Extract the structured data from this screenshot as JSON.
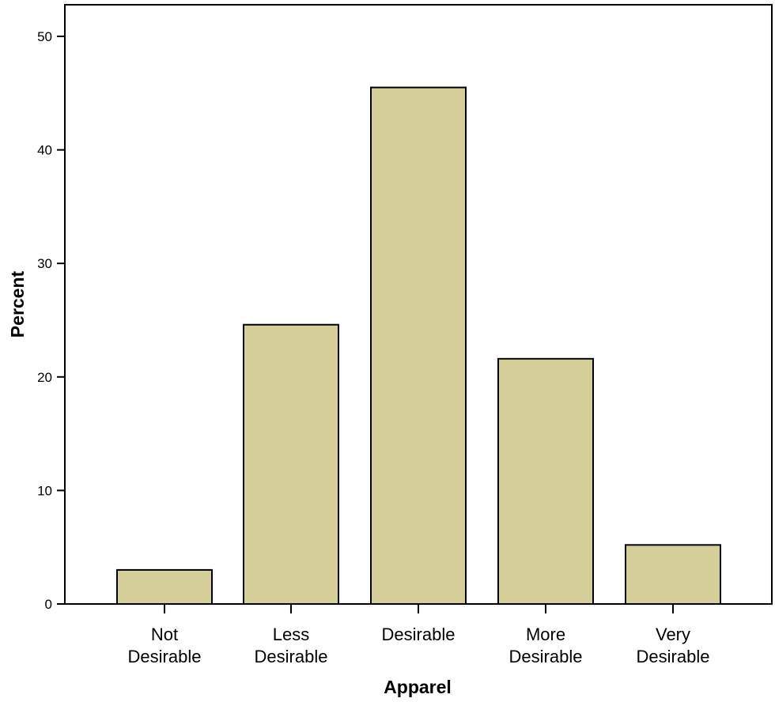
{
  "chart_data": {
    "type": "bar",
    "title": "",
    "xlabel": "Apparel",
    "ylabel": "Percent",
    "categories": [
      [
        "Not",
        "Desirable"
      ],
      [
        "Less",
        "Desirable"
      ],
      [
        "Desirable"
      ],
      [
        "More",
        "Desirable"
      ],
      [
        "Very",
        "Desirable"
      ]
    ],
    "values": [
      3.0,
      24.6,
      45.5,
      21.6,
      5.2
    ],
    "ylim": [
      0,
      52
    ],
    "yticks": [
      0,
      10,
      20,
      30,
      40,
      50
    ],
    "grid": false,
    "legend": "none",
    "colors": {
      "bar_fill": "#d4ce98",
      "bar_stroke": "#000000",
      "axis": "#000000"
    }
  }
}
